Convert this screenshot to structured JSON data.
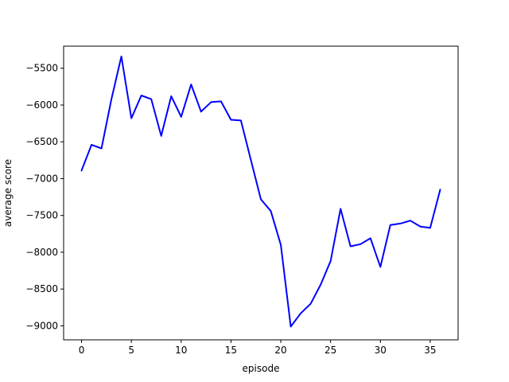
{
  "chart_data": {
    "type": "line",
    "title": "",
    "xlabel": "episode",
    "ylabel": "average score",
    "xlim": [
      -1.8,
      37.8
    ],
    "ylim": [
      -9190,
      -5200
    ],
    "xticks": [
      0,
      5,
      10,
      15,
      20,
      25,
      30,
      35
    ],
    "yticks": [
      -9000,
      -8500,
      -8000,
      -7500,
      -7000,
      -6500,
      -6000,
      -5500
    ],
    "xtick_labels": [
      "0",
      "5",
      "10",
      "15",
      "20",
      "25",
      "30",
      "35"
    ],
    "ytick_labels": [
      "−9000",
      "−8500",
      "−8000",
      "−7500",
      "−7000",
      "−6500",
      "−6000",
      "−5500"
    ],
    "grid": false,
    "line_color": "#0000ff",
    "series": [
      {
        "x": [
          0,
          1,
          2,
          3,
          4,
          5,
          6,
          7,
          8,
          9,
          10,
          11,
          12,
          13,
          14,
          15,
          16,
          17,
          18,
          19,
          20,
          21,
          22,
          23,
          24,
          25,
          26,
          27,
          28,
          29,
          30,
          31,
          32,
          33,
          34,
          35,
          36
        ],
        "values": [
          -6890,
          -6540,
          -6590,
          -5920,
          -5340,
          -6180,
          -5870,
          -5920,
          -6420,
          -5880,
          -6160,
          -5720,
          -6090,
          -5960,
          -5950,
          -6200,
          -6210,
          -6750,
          -7280,
          -7440,
          -7900,
          -9010,
          -8830,
          -8700,
          -8440,
          -8120,
          -7410,
          -7920,
          -7890,
          -7810,
          -8200,
          -7630,
          -7610,
          -7570,
          -7650,
          -7670,
          -7150
        ]
      }
    ]
  }
}
